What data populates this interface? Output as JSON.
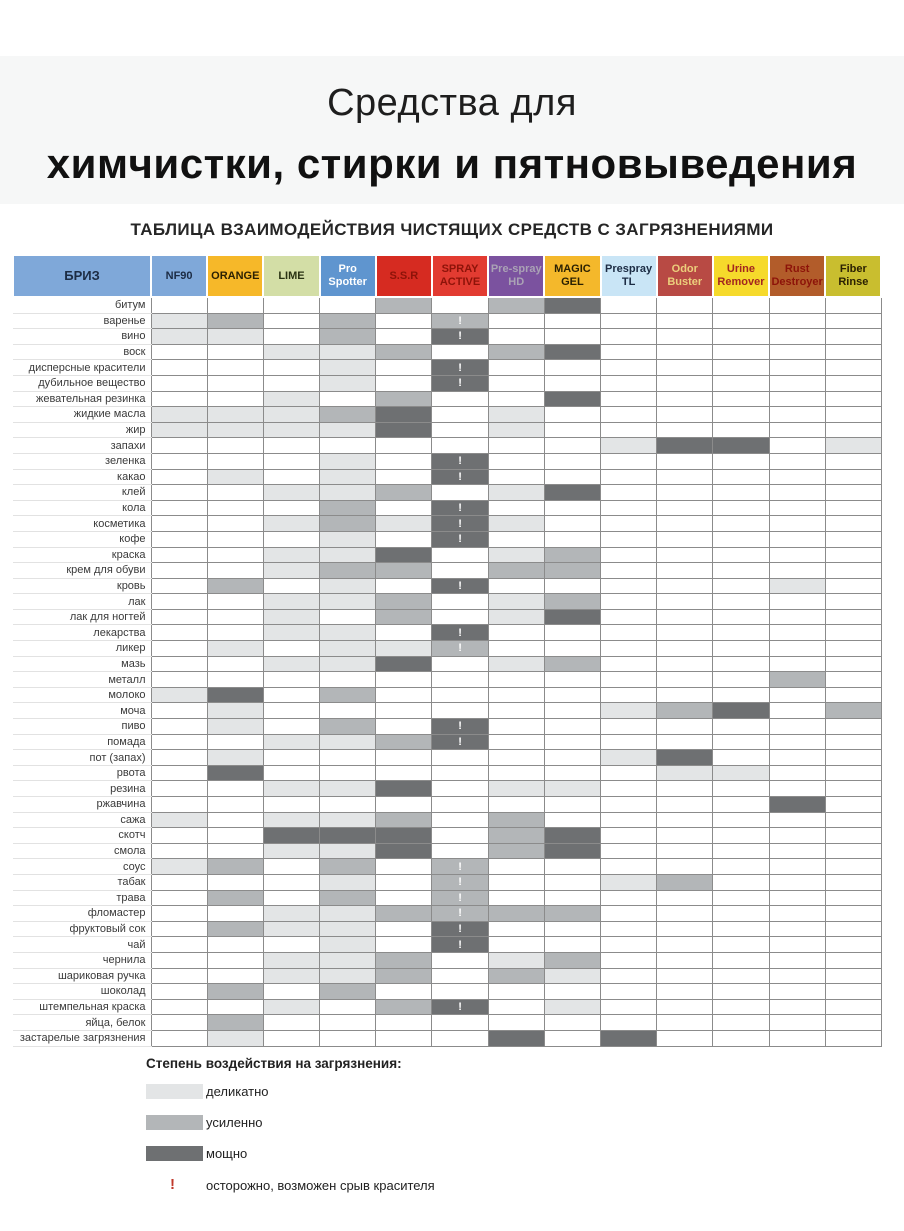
{
  "title": {
    "line1": "Средства для",
    "line2": "химчистки, стирки и пятновыведения",
    "subtitle": "ТАБЛИЦА ВЗАИМОДЕЙСТВИЯ ЧИСТЯЩИХ СРЕДСТВ С ЗАГРЯЗНЕНИЯМИ"
  },
  "chart_data": {
    "type": "heatmap",
    "title": "ТАБЛИЦА ВЗАИМОДЕЙСТВИЯ ЧИСТЯЩИХ СРЕДСТВ С ЗАГРЯЗНЕНИЯМИ",
    "value_scale": {
      "0": "",
      "1": "деликатно",
      "2": "усиленно",
      "3": "мощно",
      "!": "осторожно, возможен срыв красителя"
    },
    "cell_colors": {
      "0": "#ffffff",
      "1": "#e3e5e6",
      "2": "#b3b6b8",
      "3": "#6e7072"
    },
    "bang_color_in_cells": "#ffffff",
    "corner": {
      "label": "БРИЗ",
      "bg": "#7fa8d9",
      "fg": "#1c2c44"
    },
    "columns": [
      {
        "label": "NF90",
        "bg": "#7fa8d9",
        "fg": "#1c2c44"
      },
      {
        "label": "ORANGE",
        "bg": "#f6b829",
        "fg": "#2b2102"
      },
      {
        "label": "LIME",
        "bg": "#d3dea6",
        "fg": "#2a3313"
      },
      {
        "label": "Pro Spotter",
        "bg": "#5f95cf",
        "fg": "#ffffff"
      },
      {
        "label": "S.S.R",
        "bg": "#d62b21",
        "fg": "#8d1309"
      },
      {
        "label": "SPRAY ACTIVE",
        "bg": "#e23b31",
        "fg": "#8d1309"
      },
      {
        "label": "Pre-spray HD",
        "bg": "#7b529f",
        "fg": "#aaa2b5"
      },
      {
        "label": "MAGIC GEL",
        "bg": "#f4b82b",
        "fg": "#2b2102"
      },
      {
        "label": "Prespray TL",
        "bg": "#c9e5f6",
        "fg": "#1c2c44"
      },
      {
        "label": "Odor Buster",
        "bg": "#b84a44",
        "fg": "#eccf7c"
      },
      {
        "label": "Urine Remover",
        "bg": "#f6da2b",
        "fg": "#a3261f"
      },
      {
        "label": "Rust Destroyer",
        "bg": "#b25c2a",
        "fg": "#8d1309"
      },
      {
        "label": "Fiber Rinse",
        "bg": "#c9be2f",
        "fg": "#2b2102"
      }
    ],
    "rows": [
      {
        "label": "битум",
        "cells": [
          "0",
          "0",
          "0",
          "0",
          "2",
          "0",
          "2",
          "3",
          "0",
          "0",
          "0",
          "0",
          "0"
        ]
      },
      {
        "label": "варенье",
        "cells": [
          "1",
          "2",
          "0",
          "2",
          "0",
          "2!",
          "0",
          "0",
          "0",
          "0",
          "0",
          "0",
          "0"
        ]
      },
      {
        "label": "вино",
        "cells": [
          "1",
          "1",
          "0",
          "2",
          "0",
          "3!",
          "0",
          "0",
          "0",
          "0",
          "0",
          "0",
          "0"
        ]
      },
      {
        "label": "воск",
        "cells": [
          "0",
          "0",
          "1",
          "1",
          "2",
          "0",
          "2",
          "3",
          "0",
          "0",
          "0",
          "0",
          "0"
        ]
      },
      {
        "label": "дисперсные красители",
        "cells": [
          "0",
          "0",
          "0",
          "1",
          "0",
          "3!",
          "0",
          "0",
          "0",
          "0",
          "0",
          "0",
          "0"
        ]
      },
      {
        "label": "дубильное вещество",
        "cells": [
          "0",
          "0",
          "0",
          "1",
          "0",
          "3!",
          "0",
          "0",
          "0",
          "0",
          "0",
          "0",
          "0"
        ]
      },
      {
        "label": "жевательная резинка",
        "cells": [
          "0",
          "0",
          "1",
          "0",
          "2",
          "0",
          "0",
          "3",
          "0",
          "0",
          "0",
          "0",
          "0"
        ]
      },
      {
        "label": "жидкие масла",
        "cells": [
          "1",
          "1",
          "1",
          "2",
          "3",
          "0",
          "1",
          "0",
          "0",
          "0",
          "0",
          "0",
          "0"
        ]
      },
      {
        "label": "жир",
        "cells": [
          "1",
          "1",
          "1",
          "1",
          "3",
          "0",
          "1",
          "0",
          "0",
          "0",
          "0",
          "0",
          "0"
        ]
      },
      {
        "label": "запахи",
        "cells": [
          "0",
          "0",
          "0",
          "0",
          "0",
          "0",
          "0",
          "0",
          "1",
          "3",
          "3",
          "0",
          "1"
        ]
      },
      {
        "label": "зеленка",
        "cells": [
          "0",
          "0",
          "0",
          "1",
          "0",
          "3!",
          "0",
          "0",
          "0",
          "0",
          "0",
          "0",
          "0"
        ]
      },
      {
        "label": "какао",
        "cells": [
          "0",
          "1",
          "0",
          "1",
          "0",
          "3!",
          "0",
          "0",
          "0",
          "0",
          "0",
          "0",
          "0"
        ]
      },
      {
        "label": "клей",
        "cells": [
          "0",
          "0",
          "1",
          "1",
          "2",
          "0",
          "1",
          "3",
          "0",
          "0",
          "0",
          "0",
          "0"
        ]
      },
      {
        "label": "кола",
        "cells": [
          "0",
          "0",
          "0",
          "2",
          "0",
          "3!",
          "0",
          "0",
          "0",
          "0",
          "0",
          "0",
          "0"
        ]
      },
      {
        "label": "косметика",
        "cells": [
          "0",
          "0",
          "1",
          "2",
          "1",
          "3!",
          "1",
          "0",
          "0",
          "0",
          "0",
          "0",
          "0"
        ]
      },
      {
        "label": "кофе",
        "cells": [
          "0",
          "0",
          "0",
          "1",
          "0",
          "3!",
          "0",
          "0",
          "0",
          "0",
          "0",
          "0",
          "0"
        ]
      },
      {
        "label": "краска",
        "cells": [
          "0",
          "0",
          "1",
          "1",
          "3",
          "0",
          "1",
          "2",
          "0",
          "0",
          "0",
          "0",
          "0"
        ]
      },
      {
        "label": "крем для обуви",
        "cells": [
          "0",
          "0",
          "1",
          "2",
          "2",
          "0",
          "2",
          "2",
          "0",
          "0",
          "0",
          "0",
          "0"
        ]
      },
      {
        "label": "кровь",
        "cells": [
          "0",
          "2",
          "0",
          "1",
          "0",
          "3!",
          "0",
          "0",
          "0",
          "0",
          "0",
          "1",
          "0"
        ]
      },
      {
        "label": "лак",
        "cells": [
          "0",
          "0",
          "1",
          "1",
          "2",
          "0",
          "1",
          "2",
          "0",
          "0",
          "0",
          "0",
          "0"
        ]
      },
      {
        "label": "лак для ногтей",
        "cells": [
          "0",
          "0",
          "1",
          "0",
          "2",
          "0",
          "1",
          "3",
          "0",
          "0",
          "0",
          "0",
          "0"
        ]
      },
      {
        "label": "лекарства",
        "cells": [
          "0",
          "0",
          "1",
          "1",
          "0",
          "3!",
          "0",
          "0",
          "0",
          "0",
          "0",
          "0",
          "0"
        ]
      },
      {
        "label": "ликер",
        "cells": [
          "0",
          "1",
          "0",
          "1",
          "1",
          "2!",
          "0",
          "0",
          "0",
          "0",
          "0",
          "0",
          "0"
        ]
      },
      {
        "label": "мазь",
        "cells": [
          "0",
          "0",
          "1",
          "1",
          "3",
          "0",
          "1",
          "2",
          "0",
          "0",
          "0",
          "0",
          "0"
        ]
      },
      {
        "label": "металл",
        "cells": [
          "0",
          "0",
          "0",
          "0",
          "0",
          "0",
          "0",
          "0",
          "0",
          "0",
          "0",
          "2",
          "0"
        ]
      },
      {
        "label": "молоко",
        "cells": [
          "1",
          "3",
          "0",
          "2",
          "0",
          "0",
          "0",
          "0",
          "0",
          "0",
          "0",
          "0",
          "0"
        ]
      },
      {
        "label": "моча",
        "cells": [
          "0",
          "1",
          "0",
          "0",
          "0",
          "0",
          "0",
          "0",
          "1",
          "2",
          "3",
          "0",
          "2"
        ]
      },
      {
        "label": "пиво",
        "cells": [
          "0",
          "1",
          "0",
          "2",
          "0",
          "3!",
          "0",
          "0",
          "0",
          "0",
          "0",
          "0",
          "0"
        ]
      },
      {
        "label": "помада",
        "cells": [
          "0",
          "0",
          "1",
          "1",
          "2",
          "3!",
          "0",
          "0",
          "0",
          "0",
          "0",
          "0",
          "0"
        ]
      },
      {
        "label": "пот (запах)",
        "cells": [
          "0",
          "1",
          "0",
          "0",
          "0",
          "0",
          "0",
          "0",
          "1",
          "3",
          "0",
          "0",
          "0"
        ]
      },
      {
        "label": "рвота",
        "cells": [
          "0",
          "3",
          "0",
          "0",
          "0",
          "0",
          "0",
          "0",
          "0",
          "1",
          "1",
          "0",
          "0"
        ]
      },
      {
        "label": "резина",
        "cells": [
          "0",
          "0",
          "1",
          "1",
          "3",
          "0",
          "1",
          "1",
          "0",
          "0",
          "0",
          "0",
          "0"
        ]
      },
      {
        "label": "ржавчина",
        "cells": [
          "0",
          "0",
          "0",
          "0",
          "0",
          "0",
          "0",
          "0",
          "0",
          "0",
          "0",
          "3",
          "0"
        ]
      },
      {
        "label": "сажа",
        "cells": [
          "1",
          "0",
          "1",
          "1",
          "2",
          "0",
          "2",
          "0",
          "0",
          "0",
          "0",
          "0",
          "0"
        ]
      },
      {
        "label": "скотч",
        "cells": [
          "0",
          "0",
          "3",
          "3",
          "3",
          "0",
          "2",
          "3",
          "0",
          "0",
          "0",
          "0",
          "0"
        ]
      },
      {
        "label": "смола",
        "cells": [
          "0",
          "0",
          "1",
          "1",
          "3",
          "0",
          "2",
          "3",
          "0",
          "0",
          "0",
          "0",
          "0"
        ]
      },
      {
        "label": "соус",
        "cells": [
          "1",
          "2",
          "0",
          "2",
          "0",
          "2!",
          "0",
          "0",
          "0",
          "0",
          "0",
          "0",
          "0"
        ]
      },
      {
        "label": "табак",
        "cells": [
          "0",
          "0",
          "0",
          "1",
          "0",
          "2!",
          "0",
          "0",
          "1",
          "2",
          "0",
          "0",
          "0"
        ]
      },
      {
        "label": "трава",
        "cells": [
          "0",
          "2",
          "0",
          "2",
          "0",
          "2!",
          "0",
          "0",
          "0",
          "0",
          "0",
          "0",
          "0"
        ]
      },
      {
        "label": "фломастер",
        "cells": [
          "0",
          "0",
          "1",
          "1",
          "2",
          "2!",
          "2",
          "2",
          "0",
          "0",
          "0",
          "0",
          "0"
        ]
      },
      {
        "label": "фруктовый сок",
        "cells": [
          "0",
          "2",
          "1",
          "1",
          "0",
          "3!",
          "0",
          "0",
          "0",
          "0",
          "0",
          "0",
          "0"
        ]
      },
      {
        "label": "чай",
        "cells": [
          "0",
          "0",
          "0",
          "1",
          "0",
          "3!",
          "0",
          "0",
          "0",
          "0",
          "0",
          "0",
          "0"
        ]
      },
      {
        "label": "чернила",
        "cells": [
          "0",
          "0",
          "1",
          "1",
          "2",
          "0",
          "1",
          "2",
          "0",
          "0",
          "0",
          "0",
          "0"
        ]
      },
      {
        "label": "шариковая ручка",
        "cells": [
          "0",
          "0",
          "1",
          "1",
          "2",
          "0",
          "2",
          "1",
          "0",
          "0",
          "0",
          "0",
          "0"
        ]
      },
      {
        "label": "шоколад",
        "cells": [
          "0",
          "2",
          "0",
          "2",
          "0",
          "0",
          "0",
          "0",
          "0",
          "0",
          "0",
          "0",
          "0"
        ]
      },
      {
        "label": "штемпельная краска",
        "cells": [
          "0",
          "0",
          "1",
          "0",
          "2",
          "3!",
          "0",
          "1",
          "0",
          "0",
          "0",
          "0",
          "0"
        ]
      },
      {
        "label": "яйца, белок",
        "cells": [
          "0",
          "2",
          "0",
          "0",
          "0",
          "0",
          "0",
          "0",
          "0",
          "0",
          "0",
          "0",
          "0"
        ]
      },
      {
        "label": "застарелые загрязнения",
        "cells": [
          "0",
          "1",
          "0",
          "0",
          "0",
          "0",
          "3",
          "0",
          "3",
          "0",
          "0",
          "0",
          "0"
        ]
      }
    ]
  },
  "legend": {
    "heading": "Степень воздействия на загрязнения:",
    "items": [
      {
        "level": "1",
        "label": "деликатно"
      },
      {
        "level": "2",
        "label": "усиленно"
      },
      {
        "level": "3",
        "label": "мощно"
      }
    ],
    "warning": {
      "symbol": "!",
      "color": "#c0392b",
      "label": "осторожно, возможен срыв красителя"
    }
  }
}
